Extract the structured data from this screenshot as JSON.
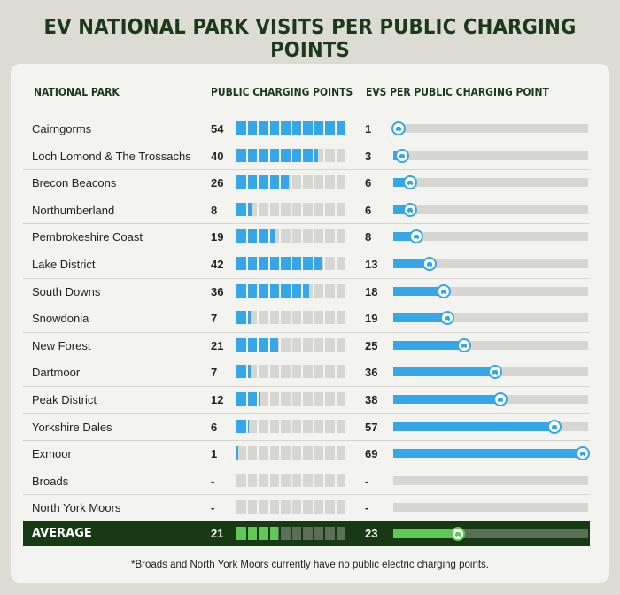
{
  "title": "EV NATIONAL PARK VISITS PER PUBLIC CHARGING POINTS",
  "headers": {
    "park": "NATIONAL PARK",
    "chargers": "PUBLIC CHARGING POINTS",
    "evs": "EVS PER PUBLIC CHARGING POINT"
  },
  "footnote": "*Broads and North York Moors currently have no public electric charging points.",
  "colors": {
    "bar": "#35a6e8",
    "avg_bar": "#5fc957",
    "avg_bg": "#173a14",
    "track": "#d6d6d2"
  },
  "chart_data": {
    "type": "table",
    "chargers_scale_max": 54,
    "evs_scale_max": 69,
    "rows": [
      {
        "park": "Cairngorms",
        "chargers": "54",
        "evs": "1",
        "chargers_value": 54,
        "evs_value": 1
      },
      {
        "park": "Loch Lomond & The Trossachs",
        "chargers": "40",
        "evs": "3",
        "chargers_value": 40,
        "evs_value": 3
      },
      {
        "park": "Brecon Beacons",
        "chargers": "26",
        "evs": "6",
        "chargers_value": 26,
        "evs_value": 6
      },
      {
        "park": "Northumberland",
        "chargers": "8",
        "evs": "6",
        "chargers_value": 8,
        "evs_value": 6
      },
      {
        "park": "Pembrokeshire Coast",
        "chargers": "19",
        "evs": "8",
        "chargers_value": 19,
        "evs_value": 8
      },
      {
        "park": "Lake District",
        "chargers": "42",
        "evs": "13",
        "chargers_value": 42,
        "evs_value": 13
      },
      {
        "park": "South Downs",
        "chargers": "36",
        "evs": "18",
        "chargers_value": 36,
        "evs_value": 18
      },
      {
        "park": "Snowdonia",
        "chargers": "7",
        "evs": "19",
        "chargers_value": 7,
        "evs_value": 19
      },
      {
        "park": "New Forest",
        "chargers": "21",
        "evs": "25",
        "chargers_value": 21,
        "evs_value": 25
      },
      {
        "park": "Dartmoor",
        "chargers": "7",
        "evs": "36",
        "chargers_value": 7,
        "evs_value": 36
      },
      {
        "park": "Peak District",
        "chargers": "12",
        "evs": "38",
        "chargers_value": 12,
        "evs_value": 38
      },
      {
        "park": "Yorkshire Dales",
        "chargers": "6",
        "evs": "57",
        "chargers_value": 6,
        "evs_value": 57
      },
      {
        "park": "Exmoor",
        "chargers": "1",
        "evs": "69",
        "chargers_value": 1,
        "evs_value": 69
      },
      {
        "park": "Broads",
        "chargers": "-",
        "evs": "-",
        "chargers_value": 0,
        "evs_value": null
      },
      {
        "park": "North York Moors",
        "chargers": "-",
        "evs": "-",
        "chargers_value": 0,
        "evs_value": null
      }
    ],
    "average": {
      "park": "AVERAGE",
      "chargers": "21",
      "evs": "23",
      "chargers_value": 21,
      "evs_value": 23
    }
  }
}
